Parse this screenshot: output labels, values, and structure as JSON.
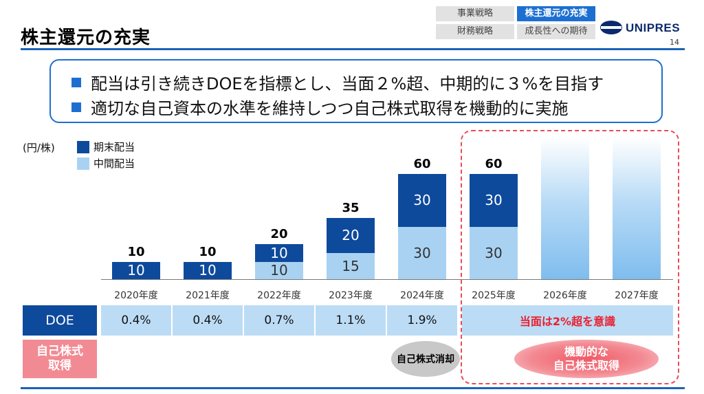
{
  "header": {
    "title": "株主還元の充実",
    "nav": [
      {
        "label": "事業戦略",
        "active": false
      },
      {
        "label": "株主還元の充実",
        "active": true
      },
      {
        "label": "財務戦略",
        "active": false
      },
      {
        "label": "成長性への期待",
        "active": false
      }
    ],
    "logo_text": "UNIPRES",
    "page_number": "14"
  },
  "summary": {
    "bullets": [
      "配当は引き続きDOEを指標とし、当面２%超、中期的に３%を目指す",
      "適切な自己資本の水準を維持しつつ自己株式取得を機動的に実施"
    ]
  },
  "chart_data": {
    "type": "bar",
    "stacked": true,
    "unit_label": "(円/株)",
    "categories": [
      "2020年度",
      "2021年度",
      "2022年度",
      "2023年度",
      "2024年度",
      "2025年度",
      "2026年度",
      "2027年度"
    ],
    "series": [
      {
        "name": "中間配当",
        "values": [
          0,
          0,
          10,
          15,
          30,
          30,
          null,
          null
        ],
        "color": "#a9d2f2"
      },
      {
        "name": "期末配当",
        "values": [
          10,
          10,
          10,
          20,
          30,
          30,
          null,
          null
        ],
        "color": "#0d4a9c"
      }
    ],
    "totals": [
      10,
      10,
      20,
      35,
      60,
      60,
      null,
      null
    ],
    "legend_position": "top-left",
    "grid": false,
    "ylim": [
      0,
      60
    ]
  },
  "doe": {
    "header": "DOE",
    "values": [
      "0.4%",
      "0.4%",
      "0.7%",
      "1.1%",
      "1.9%"
    ],
    "future_text": "当面は2%超を意識"
  },
  "buyback": {
    "label_line1": "自己株式",
    "label_line2": "取得",
    "cancellation": "自己株式消却",
    "flexible_line1": "機動的な",
    "flexible_line2": "自己株式取得"
  },
  "colors": {
    "accent": "#1c6fd1",
    "year_end_dividend": "#0d4a9c",
    "interim_dividend": "#a9d2f2",
    "highlight": "#e84c5a"
  }
}
